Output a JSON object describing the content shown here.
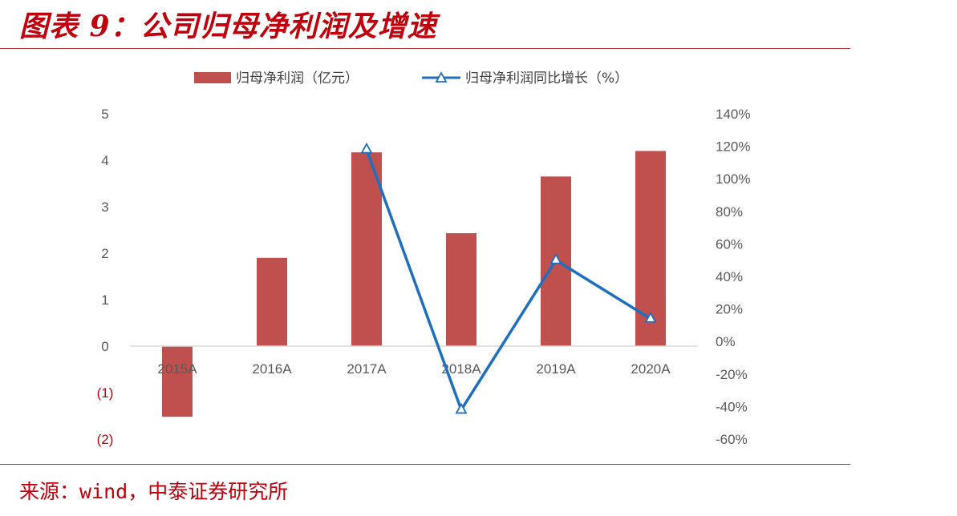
{
  "figure": {
    "title": "图表 9：公司归母净利润及增速",
    "source": "来源：wind，中泰证券研究所"
  },
  "chart_data": {
    "type": "bar",
    "categories": [
      "2015A",
      "2016A",
      "2017A",
      "2018A",
      "2019A",
      "2020A"
    ],
    "series": [
      {
        "name": "归母净利润（亿元）",
        "type": "bar",
        "axis": "left",
        "values": [
          -1.52,
          1.9,
          4.17,
          2.43,
          3.65,
          4.2
        ],
        "color": "#c0504d"
      },
      {
        "name": "归母净利润同比增长（%）",
        "type": "line",
        "axis": "right",
        "values": [
          null,
          null,
          118,
          -42,
          50,
          14
        ],
        "color": "#1f6fbf"
      }
    ],
    "left_axis": {
      "ylim": [
        -2,
        5
      ],
      "ticks": [
        -2,
        -1,
        0,
        1,
        2,
        3,
        4,
        5
      ],
      "tick_labels": [
        "(2)",
        "(1)",
        "0",
        "1",
        "2",
        "3",
        "4",
        "5"
      ]
    },
    "right_axis": {
      "ylim": [
        -60,
        140
      ],
      "ticks": [
        -60,
        -40,
        -20,
        0,
        20,
        40,
        60,
        80,
        100,
        120,
        140
      ],
      "tick_labels": [
        "-60%",
        "-40%",
        "-20%",
        "0%",
        "20%",
        "40%",
        "60%",
        "80%",
        "100%",
        "120%",
        "140%"
      ]
    },
    "legend_position": "top",
    "grid": false
  }
}
